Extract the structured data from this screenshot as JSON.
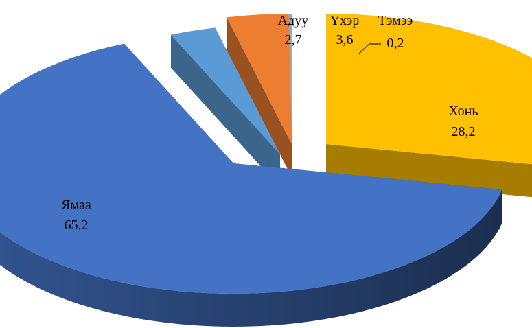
{
  "chart_data": {
    "type": "pie",
    "style": "3d-exploded",
    "categories": [
      "Хонь",
      "Ямаа",
      "Адуу",
      "Үхэр",
      "Тэмээ"
    ],
    "values": [
      28.2,
      65.2,
      2.7,
      3.6,
      0.2
    ],
    "value_labels": [
      "28,2",
      "65,2",
      "2,7",
      "3,6",
      "0,2"
    ],
    "colors": [
      "#FFC000",
      "#4472C4",
      "#5B9BD5",
      "#ED7D31",
      "#A5A5A5"
    ],
    "title": "",
    "legend": "none"
  }
}
